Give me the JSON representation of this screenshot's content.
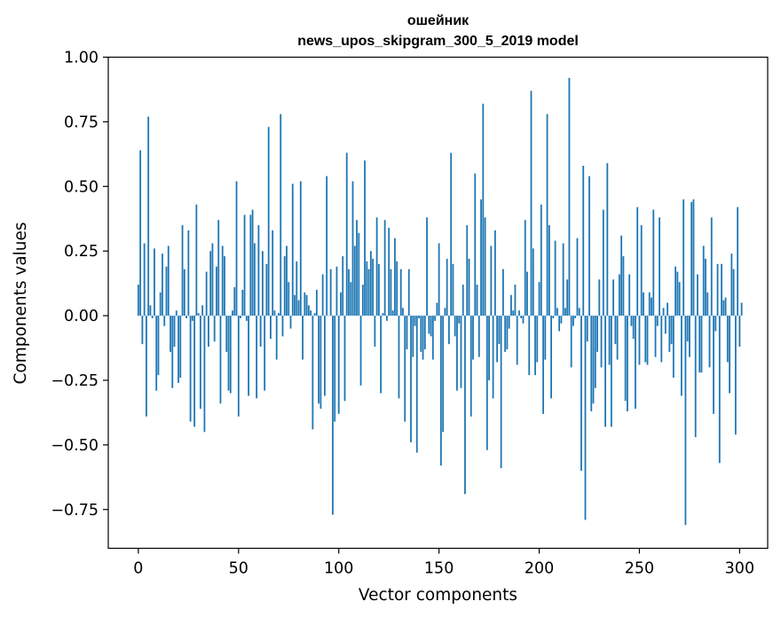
{
  "chart_data": {
    "type": "bar",
    "title": "ошейник",
    "subtitle": "news_upos_skipgram_300_5_2019 model",
    "xlabel": "Vector components",
    "ylabel": "Components values",
    "xlim": [
      -15,
      314
    ],
    "ylim": [
      -0.9,
      1.0
    ],
    "xticks": [
      0,
      50,
      100,
      150,
      200,
      250,
      300
    ],
    "xtick_labels": [
      "0",
      "50",
      "100",
      "150",
      "200",
      "250",
      "300"
    ],
    "yticks": [
      -0.75,
      -0.5,
      -0.25,
      0.0,
      0.25,
      0.5,
      0.75,
      1.0
    ],
    "ytick_labels": [
      "−0.75",
      "−0.50",
      "−0.25",
      "0.00",
      "0.25",
      "0.50",
      "0.75",
      "1.00"
    ],
    "grid": false,
    "bar_color": "#1f77b4",
    "series": [
      {
        "name": "components",
        "x_start": 0,
        "values": [
          0.12,
          0.64,
          -0.11,
          0.28,
          -0.39,
          0.77,
          0.04,
          -0.01,
          0.26,
          -0.29,
          -0.23,
          0.09,
          0.24,
          -0.04,
          0.19,
          0.27,
          -0.14,
          -0.28,
          -0.12,
          0.02,
          -0.26,
          -0.24,
          0.35,
          0.18,
          -0.01,
          0.33,
          -0.41,
          -0.02,
          -0.43,
          0.43,
          0.01,
          -0.36,
          0.04,
          -0.45,
          0.17,
          -0.12,
          0.25,
          0.28,
          -0.1,
          0.19,
          0.37,
          -0.34,
          0.27,
          0.23,
          -0.14,
          -0.29,
          -0.3,
          0.02,
          0.11,
          0.52,
          -0.39,
          -0.01,
          0.1,
          0.39,
          -0.02,
          -0.31,
          0.39,
          0.41,
          0.28,
          -0.32,
          0.35,
          -0.12,
          0.25,
          -0.29,
          0.2,
          0.73,
          -0.09,
          0.33,
          0.02,
          -0.17,
          0.01,
          0.78,
          -0.08,
          0.23,
          0.27,
          0.13,
          -0.05,
          0.51,
          0.08,
          0.21,
          0.06,
          0.52,
          -0.17,
          0.09,
          0.08,
          0.04,
          0.02,
          -0.44,
          0.01,
          0.1,
          -0.34,
          -0.36,
          0.16,
          -0.31,
          0.54,
          0.0,
          0.18,
          -0.77,
          -0.41,
          0.19,
          -0.38,
          0.09,
          0.23,
          -0.33,
          0.63,
          0.18,
          0.13,
          0.52,
          0.27,
          0.37,
          0.32,
          -0.27,
          0.12,
          0.6,
          0.21,
          0.18,
          0.25,
          0.22,
          -0.12,
          0.38,
          0.2,
          -0.3,
          0.01,
          0.37,
          -0.02,
          0.34,
          0.18,
          0.02,
          0.3,
          0.21,
          -0.32,
          0.18,
          0.03,
          -0.41,
          -0.13,
          0.18,
          -0.49,
          -0.16,
          -0.04,
          -0.53,
          -0.01,
          -0.14,
          -0.17,
          -0.13,
          0.38,
          -0.07,
          -0.08,
          -0.17,
          -0.02,
          0.05,
          0.28,
          -0.58,
          -0.45,
          0.03,
          0.22,
          -0.11,
          0.63,
          0.2,
          -0.08,
          -0.29,
          -0.03,
          -0.28,
          0.12,
          -0.69,
          0.35,
          0.22,
          -0.39,
          -0.17,
          0.55,
          0.12,
          -0.16,
          0.45,
          0.82,
          0.38,
          -0.52,
          -0.25,
          0.27,
          -0.32,
          0.33,
          -0.18,
          -0.11,
          -0.59,
          0.18,
          -0.14,
          -0.13,
          -0.05,
          0.08,
          0.02,
          0.12,
          -0.19,
          0.02,
          -0.01,
          -0.03,
          0.37,
          0.17,
          -0.23,
          0.87,
          0.26,
          -0.23,
          -0.18,
          0.13,
          0.43,
          -0.38,
          -0.17,
          0.78,
          0.35,
          -0.32,
          -0.01,
          0.29,
          0.03,
          -0.06,
          -0.03,
          0.28,
          0.03,
          0.14,
          0.92,
          -0.2,
          -0.04,
          -0.01,
          0.3,
          0.03,
          -0.6,
          0.58,
          -0.79,
          -0.1,
          0.54,
          -0.37,
          -0.34,
          -0.28,
          -0.14,
          0.14,
          -0.2,
          0.41,
          -0.43,
          0.59,
          -0.19,
          -0.43,
          0.14,
          -0.11,
          -0.17,
          0.16,
          0.31,
          0.23,
          -0.33,
          -0.37,
          0.16,
          -0.04,
          -0.09,
          -0.36,
          0.42,
          -0.19,
          0.35,
          0.09,
          -0.18,
          -0.19,
          0.09,
          0.07,
          0.41,
          -0.16,
          -0.04,
          0.38,
          -0.18,
          0.03,
          -0.07,
          0.05,
          -0.14,
          -0.11,
          -0.24,
          0.19,
          0.17,
          0.13,
          -0.31,
          0.45,
          -0.81,
          -0.1,
          -0.16,
          0.44,
          0.45,
          -0.47,
          0.16,
          -0.22,
          -0.22,
          0.27,
          0.22,
          0.09,
          -0.2,
          0.38,
          -0.38,
          -0.06,
          0.2,
          -0.57,
          0.2,
          0.06,
          0.07,
          -0.18,
          -0.3,
          0.24,
          0.18,
          -0.46,
          0.42,
          -0.12,
          0.05
        ]
      }
    ]
  }
}
